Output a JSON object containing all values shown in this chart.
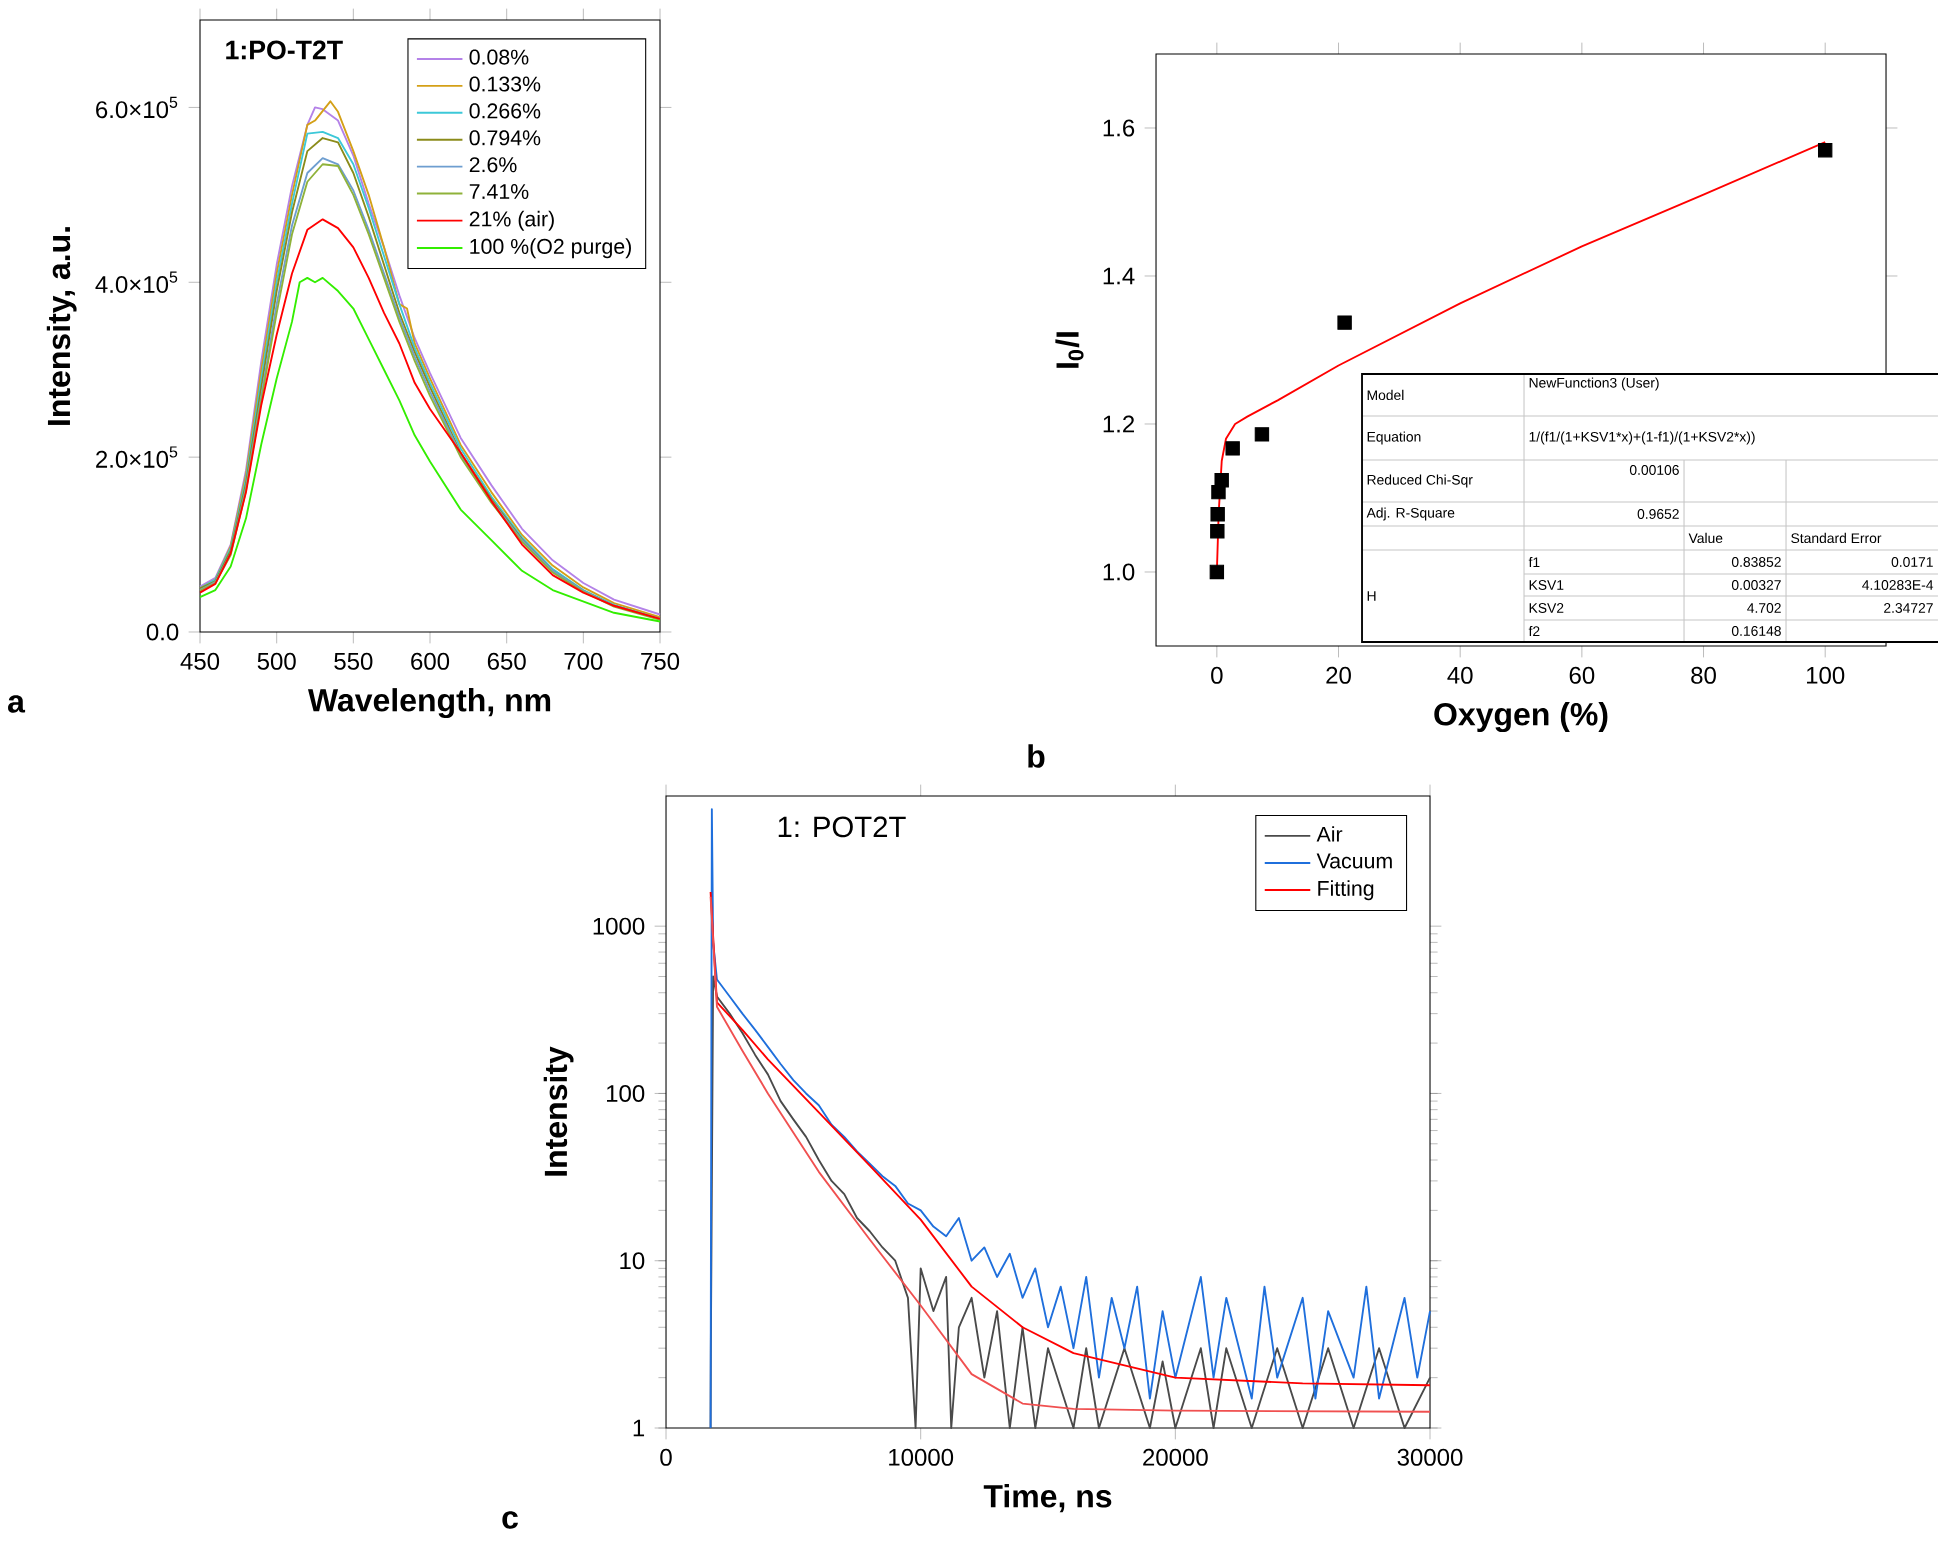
{
  "chart_data": [
    {
      "type": "line",
      "xlabel": "Wavelength, nm",
      "ylabel": "Intensity, a.u.",
      "xlim": [
        450,
        750
      ],
      "ylim": [
        0,
        700000
      ],
      "xticks": [
        450,
        500,
        550,
        600,
        650,
        700,
        750
      ],
      "yticks": [
        {
          "value": 0,
          "label": "0.0"
        },
        {
          "value": 200000,
          "label": "2.0×10$^{5}$"
        },
        {
          "value": 400000,
          "label": "4.0×10$^{5}$"
        },
        {
          "value": 600000,
          "label": "6.0×10$^{5}$"
        }
      ],
      "legend": "top right",
      "annotations": [
        "1:PO-T2T",
        "a"
      ],
      "series": [
        {
          "name": "0.08%",
          "color": "#b482e8",
          "x": [
            450,
            460,
            470,
            480,
            490,
            500,
            510,
            520,
            525,
            530,
            540,
            550,
            560,
            570,
            580,
            590,
            600,
            620,
            640,
            660,
            680,
            700,
            720,
            750
          ],
          "values": [
            52000,
            62000,
            100000,
            185000,
            310000,
            420000,
            510000,
            580000,
            600000,
            598000,
            585000,
            545000,
            490000,
            440000,
            385000,
            336000,
            296000,
            222000,
            168000,
            118000,
            82000,
            56000,
            37000,
            20000
          ]
        },
        {
          "name": "0.133%",
          "color": "#d4a017",
          "x": [
            450,
            460,
            470,
            480,
            490,
            500,
            510,
            520,
            525,
            535,
            540,
            550,
            560,
            570,
            580,
            585,
            590,
            600,
            620,
            640,
            660,
            680,
            700,
            720,
            750
          ],
          "values": [
            50000,
            60000,
            98000,
            180000,
            300000,
            410000,
            500000,
            580000,
            585000,
            607000,
            595000,
            550000,
            500000,
            440000,
            375000,
            370000,
            330000,
            290000,
            214000,
            160000,
            111000,
            76000,
            51000,
            33000,
            17000
          ]
        },
        {
          "name": "0.266%",
          "color": "#3cc8d8",
          "x": [
            450,
            460,
            470,
            480,
            490,
            500,
            510,
            520,
            530,
            540,
            550,
            560,
            570,
            580,
            590,
            600,
            620,
            640,
            660,
            680,
            700,
            720,
            750
          ],
          "values": [
            50000,
            60000,
            96000,
            175000,
            290000,
            400000,
            490000,
            570000,
            572000,
            565000,
            535000,
            485000,
            430000,
            375000,
            325000,
            285000,
            210000,
            155000,
            108000,
            72000,
            48000,
            31000,
            15000
          ]
        },
        {
          "name": "0.794%",
          "color": "#8b8b1a",
          "x": [
            450,
            460,
            470,
            480,
            490,
            500,
            510,
            520,
            530,
            540,
            550,
            560,
            570,
            580,
            590,
            600,
            620,
            640,
            660,
            680,
            700,
            720,
            750
          ],
          "values": [
            50000,
            58000,
            93000,
            170000,
            280000,
            390000,
            480000,
            550000,
            565000,
            560000,
            525000,
            475000,
            420000,
            365000,
            320000,
            280000,
            205000,
            152000,
            106000,
            70000,
            47000,
            30000,
            15000
          ]
        },
        {
          "name": "2.6%",
          "color": "#6e9ed0",
          "x": [
            450,
            460,
            470,
            480,
            490,
            500,
            510,
            520,
            530,
            540,
            550,
            560,
            570,
            580,
            590,
            600,
            620,
            640,
            660,
            680,
            700,
            720,
            750
          ],
          "values": [
            48000,
            57000,
            90000,
            165000,
            270000,
            375000,
            465000,
            525000,
            542000,
            535000,
            505000,
            460000,
            410000,
            360000,
            315000,
            275000,
            203000,
            150000,
            105000,
            70000,
            47000,
            30000,
            15000
          ]
        },
        {
          "name": "7.41%",
          "color": "#8fb23a",
          "x": [
            450,
            460,
            470,
            480,
            490,
            500,
            510,
            520,
            530,
            540,
            550,
            560,
            570,
            580,
            590,
            600,
            620,
            640,
            660,
            680,
            700,
            720,
            750
          ],
          "values": [
            47000,
            56000,
            88000,
            162000,
            265000,
            365000,
            455000,
            515000,
            535000,
            533000,
            500000,
            455000,
            405000,
            355000,
            310000,
            270000,
            200000,
            148000,
            103000,
            68000,
            46000,
            29000,
            14000
          ]
        },
        {
          "name": "21% (air)",
          "color": "#ff0000",
          "x": [
            450,
            460,
            470,
            480,
            490,
            500,
            510,
            520,
            530,
            540,
            550,
            560,
            570,
            580,
            590,
            600,
            620,
            640,
            660,
            680,
            700,
            720,
            750
          ],
          "values": [
            45000,
            55000,
            90000,
            160000,
            260000,
            340000,
            410000,
            460000,
            472000,
            462000,
            440000,
            405000,
            365000,
            330000,
            285000,
            255000,
            205000,
            150000,
            100000,
            65000,
            45000,
            30000,
            15000
          ]
        },
        {
          "name": "100 %(O2 purge)",
          "color": "#33ee00",
          "x": [
            450,
            460,
            470,
            480,
            490,
            500,
            510,
            515,
            520,
            525,
            530,
            540,
            550,
            560,
            570,
            580,
            590,
            600,
            620,
            640,
            660,
            680,
            700,
            720,
            750
          ],
          "values": [
            40000,
            48000,
            75000,
            130000,
            215000,
            290000,
            355000,
            400000,
            405000,
            400000,
            405000,
            390000,
            370000,
            335000,
            300000,
            265000,
            225000,
            195000,
            140000,
            105000,
            70000,
            48000,
            35000,
            22000,
            12000
          ]
        }
      ]
    },
    {
      "type": "scatter",
      "xlabel": "Oxygen (%)",
      "ylabel": "I$_{0}$/I",
      "xlim": [
        -10,
        110
      ],
      "ylim": [
        0.9,
        1.7
      ],
      "xticks": [
        0,
        20,
        40,
        60,
        80,
        100
      ],
      "yticks": [
        {
          "value": 1.0,
          "label": "1.0"
        },
        1.2,
        1.4,
        1.6
      ],
      "annotations": [
        "Model",
        "NewFunction3 (User)",
        "Equation",
        "1/(f1/(1+KSV1*x)+(1-f1)/(1+KSV2*x))",
        "Reduced Chi-Sqr",
        "0.00106",
        "Adj. R-Square",
        "0.9652",
        "Value",
        "Standard Error",
        "H",
        "f1",
        "0.83852",
        "0.0171",
        "KSV1",
        "0.00327",
        "4.10283E-4",
        "KSV2",
        "4.702",
        "2.34727",
        "f2",
        "0.16148",
        "b"
      ],
      "series": [
        {
          "type": "scatter",
          "marker": "square",
          "color": "#000000",
          "x": [
            0,
            0.08,
            0.133,
            0.266,
            0.794,
            2.6,
            7.41,
            21,
            100
          ],
          "values": [
            1.0,
            1.055,
            1.078,
            1.108,
            1.124,
            1.167,
            1.186,
            1.337,
            1.57
          ]
        },
        {
          "type": "line",
          "color": "#ff0000",
          "x": [
            0,
            0.3,
            0.8,
            1.5,
            3,
            5,
            10,
            20,
            40,
            60,
            80,
            100
          ],
          "values": [
            1.0,
            1.08,
            1.15,
            1.18,
            1.2,
            1.21,
            1.232,
            1.279,
            1.363,
            1.44,
            1.51,
            1.581
          ]
        }
      ]
    },
    {
      "type": "line",
      "xlabel": "Time, ns",
      "ylabel": "Intensity",
      "log": "y",
      "xlim": [
        0,
        30000
      ],
      "ylim": [
        1,
        6000
      ],
      "xticks": [
        0,
        10000,
        20000,
        30000
      ],
      "yticks": [
        1,
        10,
        100,
        1000
      ],
      "legend": "top right",
      "annotations": [
        "1: POT2T",
        "c"
      ],
      "series": [
        {
          "name": "Air",
          "color": "#4a4a4a",
          "x": [
            1750,
            1760,
            1850,
            2000,
            2500,
            3000,
            3500,
            4000,
            4500,
            5000,
            5500,
            6000,
            6500,
            7000,
            7500,
            8000,
            8500,
            9000,
            9500,
            9800,
            10000,
            10500,
            11000,
            11200,
            11500,
            12000,
            12500,
            13000,
            13500,
            14000,
            14500,
            15000,
            16000,
            16500,
            17000,
            18000,
            19000,
            19500,
            20000,
            21000,
            21500,
            22000,
            23000,
            24000,
            25000,
            26000,
            27000,
            28000,
            29000,
            30000
          ],
          "values": [
            1,
            3,
            500,
            380,
            300,
            230,
            170,
            130,
            90,
            70,
            55,
            40,
            30,
            25,
            18,
            15,
            12,
            10,
            6,
            1,
            9,
            5,
            8,
            1,
            4,
            6,
            2,
            5,
            1,
            4,
            1,
            3,
            1,
            3,
            1,
            3,
            1,
            2.5,
            1,
            3,
            1,
            3,
            1,
            3,
            1,
            3,
            1,
            3,
            1,
            2
          ]
        },
        {
          "name": "Vacuum",
          "color": "#1f6fdc",
          "x": [
            1750,
            1800,
            1850,
            2000,
            2500,
            3000,
            3500,
            4000,
            4500,
            5000,
            5500,
            6000,
            6500,
            7000,
            7500,
            8000,
            8500,
            9000,
            9500,
            10000,
            10500,
            11000,
            11500,
            12000,
            12500,
            13000,
            13500,
            14000,
            14500,
            15000,
            15500,
            16000,
            16500,
            17000,
            17500,
            18000,
            18500,
            19000,
            19500,
            20000,
            21000,
            21500,
            22000,
            23000,
            23500,
            24000,
            25000,
            25500,
            26000,
            27000,
            27500,
            28000,
            29000,
            29500,
            30000
          ],
          "values": [
            1,
            5000,
            800,
            480,
            380,
            300,
            240,
            190,
            150,
            120,
            100,
            85,
            65,
            55,
            45,
            38,
            32,
            28,
            22,
            20,
            16,
            14,
            18,
            10,
            12,
            8,
            11,
            6,
            9,
            4,
            7,
            3,
            8,
            2,
            6,
            3,
            7,
            1.5,
            5,
            2,
            8,
            2,
            6,
            1.5,
            7,
            2,
            6,
            1.5,
            5,
            2,
            7,
            1.5,
            6,
            2,
            5
          ]
        },
        {
          "name": "Fitting",
          "color": "#ff0000",
          "x": [
            1750,
            2000,
            3000,
            4000,
            6000,
            8000,
            10000,
            12000,
            14000,
            16000,
            20000,
            25000,
            30000
          ],
          "values": [
            1600,
            350,
            240,
            160,
            77,
            37,
            17.6,
            7,
            4,
            2.8,
            2.0,
            1.85,
            1.8
          ]
        },
        {
          "color": "#f05050",
          "x": [
            1750,
            2000,
            3000,
            4000,
            6000,
            8000,
            10000,
            12000,
            14000,
            16000,
            20000,
            30000
          ],
          "values": [
            1500,
            330,
            180,
            100,
            34,
            13.4,
            5.4,
            2.1,
            1.4,
            1.3,
            1.27,
            1.25
          ]
        }
      ]
    }
  ]
}
